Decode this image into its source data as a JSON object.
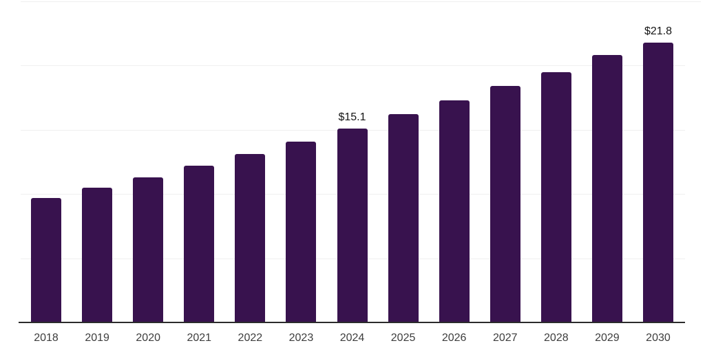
{
  "chart": {
    "colors": {
      "bar": "#38124E",
      "axis_line": "#2B2B2B",
      "gridline": "#EFEFEF",
      "tick_label": "#3D3D3D",
      "data_label": "#141414",
      "background": "#FFFFFF"
    }
  },
  "chart_data": {
    "type": "bar",
    "categories": [
      "2018",
      "2019",
      "2020",
      "2021",
      "2022",
      "2023",
      "2024",
      "2025",
      "2026",
      "2027",
      "2028",
      "2029",
      "2030"
    ],
    "values": [
      9.7,
      10.5,
      11.3,
      12.2,
      13.1,
      14.1,
      15.1,
      16.2,
      17.3,
      18.4,
      19.5,
      20.8,
      21.8
    ],
    "data_labels": [
      "",
      "",
      "",
      "",
      "",
      "",
      "$15.1",
      "",
      "",
      "",
      "",
      "",
      "$21.8"
    ],
    "title": "",
    "xlabel": "",
    "ylabel": "",
    "ylim": [
      0,
      25
    ],
    "gridline_step": 5,
    "grid": true,
    "y_axis_labels_visible": false,
    "legend": false
  }
}
